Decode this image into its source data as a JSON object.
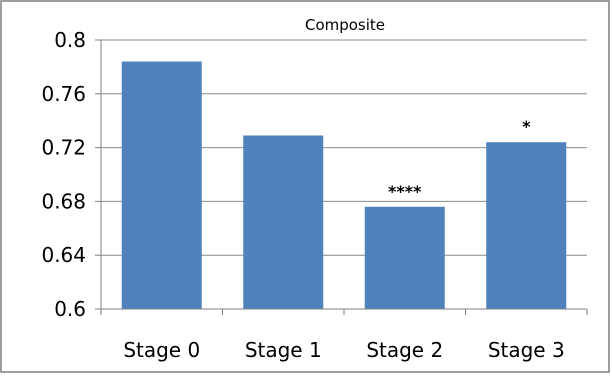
{
  "chart_data": {
    "type": "bar",
    "title": "Composite",
    "categories": [
      "Stage 0",
      "Stage 1",
      "Stage 2",
      "Stage 3"
    ],
    "values": [
      0.784,
      0.729,
      0.676,
      0.724
    ],
    "annotations": [
      "",
      "",
      "****",
      "*"
    ],
    "xlabel": "",
    "ylabel": "",
    "ylim": [
      0.6,
      0.8
    ],
    "yticks": [
      "0.8",
      "0.76",
      "0.72",
      "0.68",
      "0.64",
      "0.6"
    ],
    "ytick_values": [
      0.8,
      0.76,
      0.72,
      0.68,
      0.64,
      0.6
    ],
    "grid": true,
    "legend": "none",
    "bar_color": "#4f81bd",
    "grid_color": "#8c8c8c",
    "frame_color": "#7f7f7f"
  }
}
